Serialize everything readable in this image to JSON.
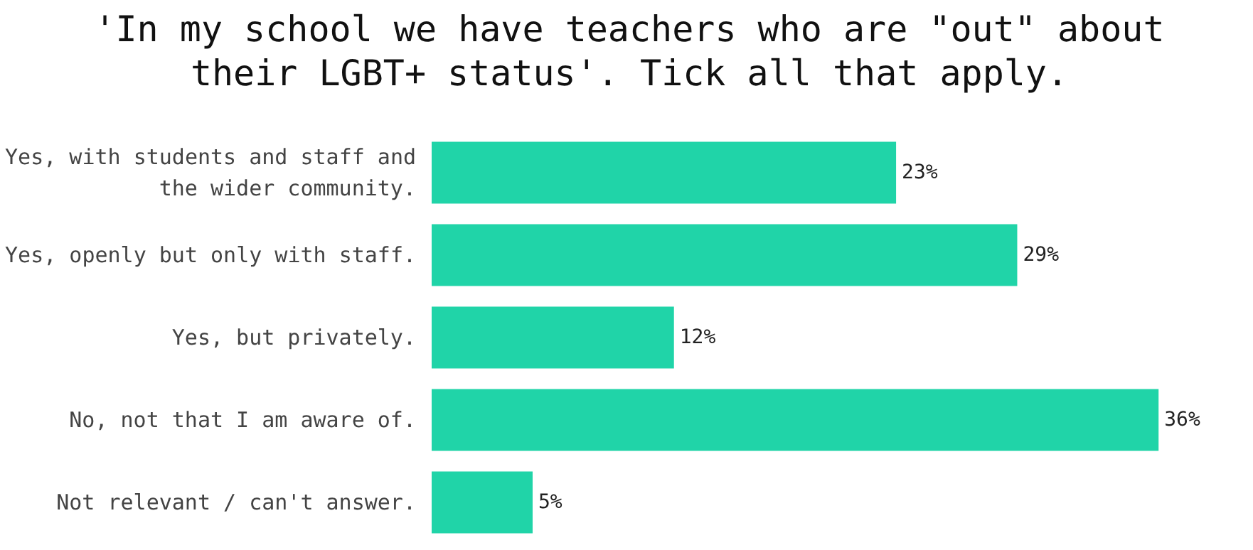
{
  "chart_data": {
    "type": "bar",
    "orientation": "horizontal",
    "title": "'In my school we have teachers who are \"out\" about their LGBT+ status'. Tick all that apply.",
    "categories": [
      "Yes, with students and staff and the wider community.",
      "Yes, openly but only with staff.",
      "Yes, but privately.",
      "No, not that I am aware of.",
      "Not relevant / can't answer."
    ],
    "values": [
      23,
      29,
      12,
      36,
      5
    ],
    "value_labels": [
      "23%",
      "29%",
      "12%",
      "36%",
      "5%"
    ],
    "color": "#20d4a8",
    "tick_labels": "y"
  }
}
